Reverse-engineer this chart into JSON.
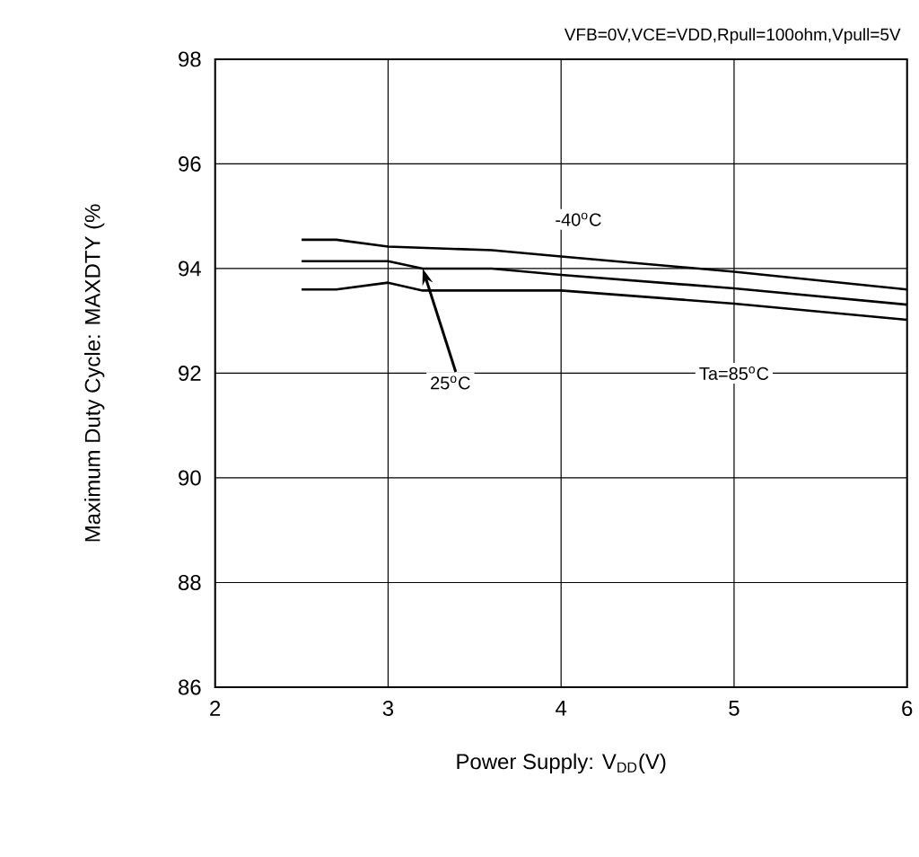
{
  "chart_data": {
    "type": "line",
    "title": "VFB=0V,VCE=VDD,Rpull=100ohm,Vpull=5V",
    "xlabel": "Power Supply: V$_{DD}$(V)",
    "ylabel": "Maximum Duty Cycle: MAXDTY (%",
    "series": [
      {
        "color": "#000000",
        "x": [
          2.5,
          2.7,
          3.0,
          3.6,
          4.0,
          5.0,
          6.0
        ],
        "values": [
          94.55,
          94.55,
          94.42,
          94.35,
          94.23,
          93.94,
          93.6
        ]
      },
      {
        "color": "#000000",
        "x": [
          2.5,
          3.0,
          3.2,
          3.6,
          4.0,
          5.0,
          6.0
        ],
        "values": [
          94.14,
          94.14,
          94.0,
          94.0,
          93.88,
          93.62,
          93.31
        ]
      },
      {
        "color": "#000000",
        "x": [
          2.5,
          2.7,
          3.0,
          3.2,
          4.0,
          5.0,
          6.0
        ],
        "values": [
          93.6,
          93.6,
          93.73,
          93.58,
          93.58,
          93.33,
          93.02
        ]
      }
    ],
    "annotations": [
      "-40$^{o}$C",
      {
        "text": "25$^{o}$C",
        "x": 3.2,
        "y": 94.0
      },
      "Ta=85$^{o}$C"
    ],
    "xlim": [
      2,
      6
    ],
    "ylim": [
      86,
      98
    ],
    "xticks": [
      2,
      3,
      4,
      5,
      6
    ],
    "yticks": [
      86,
      88,
      90,
      92,
      94,
      96,
      98
    ],
    "grid": true,
    "line_style": "solid",
    "marker": "none"
  }
}
